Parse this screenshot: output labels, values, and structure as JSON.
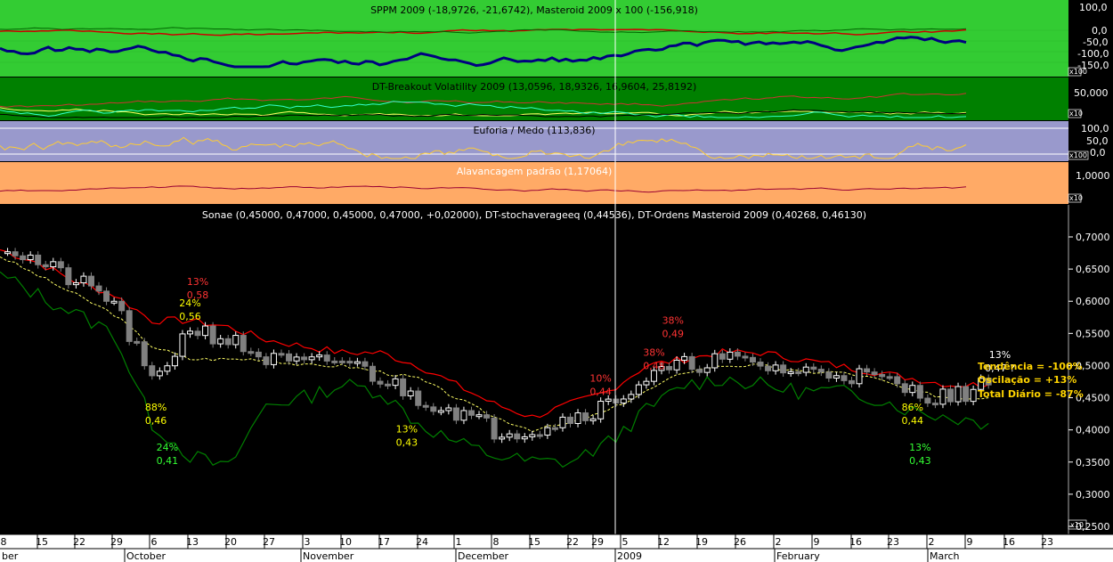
{
  "colors": {
    "panel1_bg": "#33cc33",
    "panel2_bg": "#008000",
    "panel3_bg": "#9999cc",
    "panel4_bg": "#ffaa66",
    "main_bg": "#000000",
    "candle_up": "#ffffff",
    "candle_down": "#808080",
    "upper_band": "#ff0000",
    "lower_band": "#008000",
    "mid_line": "#ffff66",
    "oscillator_line": "#000080",
    "signal_line": "#cc0000",
    "cursor": "#ffffff"
  },
  "panels": {
    "p1": {
      "title": "SPPM 2009 (-18,9726, -21,6742), Masteroid 2009 x 100 (-156,918)",
      "ticks": [
        "100,0",
        "0,0",
        "-50,0",
        "-100,0",
        "-150,0"
      ],
      "scale": "x100"
    },
    "p2": {
      "title": "DT-Breakout Volatility 2009 (13,0596, 18,9326, 16,9604, 25,8192)",
      "ticks": [
        "50,000"
      ],
      "scale": "x10"
    },
    "p3": {
      "title": "Euforia / Medo (113,836)",
      "ticks": [
        "100,0",
        "50,0",
        "0,0"
      ],
      "scale": "x100"
    },
    "p4": {
      "title": "Alavancagem padrão (1,17064)",
      "ticks": [
        "1,0000"
      ],
      "scale": "x10"
    }
  },
  "main": {
    "title": "Sonae (0,45000, 0,47000, 0,45000, 0,47000, +0,02000), DT-stochaverageeq (0,44536), DT-Ordens Masteroid 2009 (0,40268, 0,46130)",
    "scale": "x10",
    "info_lines": [
      "Tendência = -100%",
      "Oscilação = +13%",
      "Total Diário = -87%"
    ]
  },
  "x_axis": {
    "days": [
      "8",
      "15",
      "22",
      "29",
      "6",
      "13",
      "20",
      "27",
      "3",
      "10",
      "17",
      "24",
      "1",
      "8",
      "15",
      "22",
      "29",
      "5",
      "12",
      "19",
      "26",
      "2",
      "9",
      "16",
      "23",
      "2",
      "9",
      "16",
      "23"
    ],
    "months": [
      "ber",
      "October",
      "November",
      "December",
      "2009",
      "February",
      "March"
    ]
  },
  "chart_data": {
    "type": "candlestick",
    "title": "Sonae (0,45000, 0,47000, 0,45000, 0,47000, +0,02000), DT-stochaverageeq (0,44536), DT-Ordens Masteroid 2009 (0,40268, 0,46130)",
    "ylim": [
      0.25,
      0.72
    ],
    "y_ticks": [
      "0,7000",
      "0,6500",
      "0,6000",
      "0,5500",
      "0,5000",
      "0,4500",
      "0,4000",
      "0,3500",
      "0,3000",
      "0,2500"
    ],
    "y_tick_values": [
      0.7,
      0.65,
      0.6,
      0.55,
      0.5,
      0.45,
      0.4,
      0.35,
      0.3,
      0.25
    ],
    "annotations": [
      {
        "pct": "13%",
        "price": "0,58",
        "color": "#ff3333",
        "x_week": 5.2,
        "y": 0.625
      },
      {
        "pct": "24%",
        "price": "0,56",
        "color": "#ffff00",
        "x_week": 5.0,
        "y": 0.592
      },
      {
        "pct": "88%",
        "price": "0,46",
        "color": "#ffff00",
        "x_week": 4.1,
        "y": 0.43
      },
      {
        "pct": "24%",
        "price": "0,41",
        "color": "#33ff33",
        "x_week": 4.4,
        "y": 0.368
      },
      {
        "pct": "13%",
        "price": "0,43",
        "color": "#ffff00",
        "x_week": 10.7,
        "y": 0.396
      },
      {
        "pct": "10%",
        "price": "0,44",
        "color": "#ff3333",
        "x_week": 15.8,
        "y": 0.475
      },
      {
        "pct": "38%",
        "price": "0,48",
        "color": "#ff3333",
        "x_week": 17.2,
        "y": 0.515
      },
      {
        "pct": "38%",
        "price": "0,49",
        "color": "#ff3333",
        "x_week": 17.7,
        "y": 0.565
      },
      {
        "pct": "86%",
        "price": "0,44",
        "color": "#ffff00",
        "x_week": 24.0,
        "y": 0.43
      },
      {
        "pct": "13%",
        "price": "0,43",
        "color": "#33ff33",
        "x_week": 24.2,
        "y": 0.368
      },
      {
        "pct": "13%",
        "price": "0,47 ?",
        "color": "#ffffff",
        "x_week": 26.3,
        "y": 0.512
      }
    ],
    "weekly_close": [
      0.69,
      0.66,
      0.63,
      0.6,
      0.47,
      0.56,
      0.54,
      0.51,
      0.5,
      0.51,
      0.48,
      0.45,
      0.43,
      0.4,
      0.4,
      0.42,
      0.44,
      0.48,
      0.5,
      0.51,
      0.5,
      0.49,
      0.49,
      0.48,
      0.46,
      0.45,
      0.47
    ],
    "upper_band": [
      0.68,
      0.66,
      0.63,
      0.61,
      0.57,
      0.57,
      0.56,
      0.54,
      0.53,
      0.52,
      0.52,
      0.5,
      0.47,
      0.44,
      0.42,
      0.44,
      0.46,
      0.5,
      0.51,
      0.52,
      0.52,
      0.51,
      0.5,
      0.49,
      0.48,
      0.47,
      0.47
    ],
    "lower_band": [
      0.64,
      0.61,
      0.58,
      0.55,
      0.41,
      0.36,
      0.34,
      0.44,
      0.45,
      0.47,
      0.46,
      0.41,
      0.38,
      0.36,
      0.35,
      0.35,
      0.38,
      0.43,
      0.47,
      0.48,
      0.47,
      0.46,
      0.46,
      0.45,
      0.43,
      0.42,
      0.41
    ],
    "stoch_avg": [
      0.67,
      0.64,
      0.61,
      0.58,
      0.53,
      0.51,
      0.51,
      0.51,
      0.5,
      0.5,
      0.49,
      0.48,
      0.45,
      0.42,
      0.4,
      0.41,
      0.43,
      0.46,
      0.49,
      0.5,
      0.5,
      0.49,
      0.49,
      0.48,
      0.46,
      0.45,
      0.45
    ]
  }
}
